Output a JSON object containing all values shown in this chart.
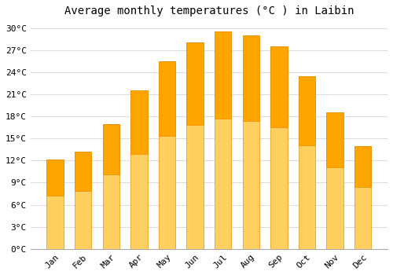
{
  "title": "Average monthly temperatures (°C ) in Laibin",
  "months": [
    "Jan",
    "Feb",
    "Mar",
    "Apr",
    "May",
    "Jun",
    "Jul",
    "Aug",
    "Sep",
    "Oct",
    "Nov",
    "Dec"
  ],
  "temperatures": [
    12.1,
    13.2,
    16.9,
    21.5,
    25.5,
    28.0,
    29.5,
    29.0,
    27.5,
    23.5,
    18.5,
    14.0
  ],
  "bar_color_top": "#FFA500",
  "bar_color_bottom": "#FFD060",
  "bar_edge_color": "#E89000",
  "background_color": "#FFFFFF",
  "plot_bg_color": "#FFFFFF",
  "grid_color": "#DDDDDD",
  "ylim": [
    0,
    31
  ],
  "yticks": [
    0,
    3,
    6,
    9,
    12,
    15,
    18,
    21,
    24,
    27,
    30
  ],
  "ylabel_suffix": "°C",
  "title_fontsize": 10,
  "tick_fontsize": 8,
  "figsize": [
    5.0,
    3.5
  ],
  "dpi": 100,
  "bar_width": 0.6
}
